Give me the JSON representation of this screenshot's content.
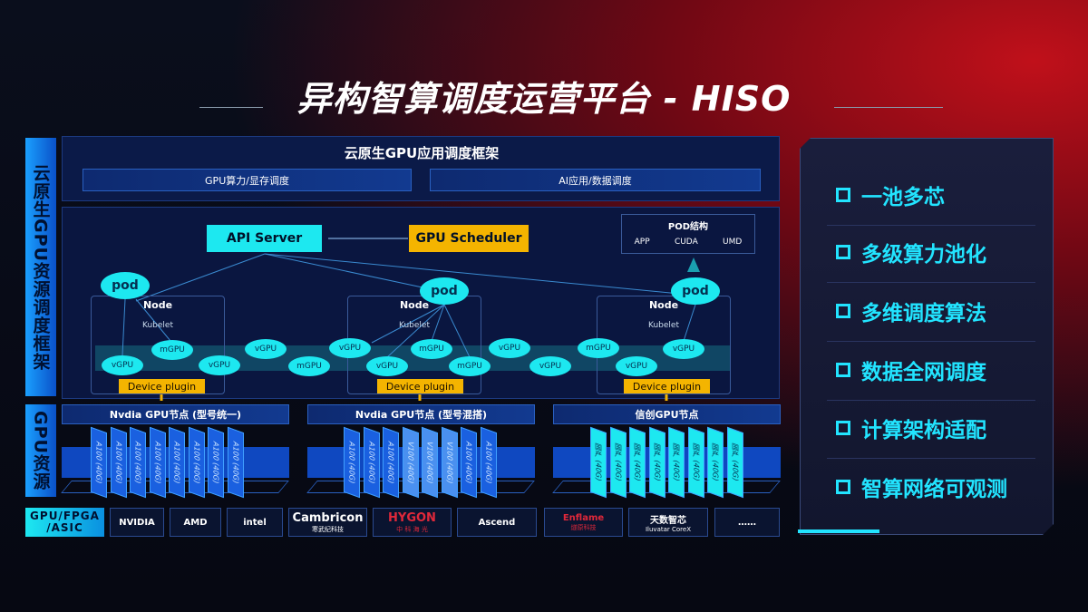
{
  "title": "异构智算调度运营平台 - HISO",
  "left_labels": {
    "framework": "云原生GPU资源调度框架",
    "resources": "GPU资源",
    "chip_types": "GPU/FPGA /ASIC"
  },
  "app_framework": {
    "title": "云原生GPU应用调度框架",
    "bars": [
      "GPU算力/显存调度",
      "AI应用/数据调度"
    ]
  },
  "scheduler": {
    "api_server": "API Server",
    "gpu_scheduler": "GPU Scheduler",
    "pod_structure": {
      "title": "POD结构",
      "items": [
        "APP",
        "CUDA",
        "UMD"
      ]
    }
  },
  "nodes": [
    {
      "node": "Node",
      "kubelet": "Kubelet",
      "pod": "pod",
      "device_plugin": "Device plugin"
    },
    {
      "node": "Node",
      "kubelet": "Kubelet",
      "pod": "pod",
      "device_plugin": "Device plugin"
    },
    {
      "node": "Node",
      "kubelet": "Kubelet",
      "pod": "pod",
      "device_plugin": "Device plugin"
    }
  ],
  "virtual_gpus": [
    "vGPU",
    "mGPU",
    "vGPU",
    "vGPU",
    "mGPU",
    "vGPU",
    "vGPU",
    "mGPU",
    "mGPU",
    "vGPU",
    "vGPU",
    "mGPU",
    "vGPU",
    "vGPU"
  ],
  "gpu_nodes": [
    {
      "title": "Nvdia GPU节点 (型号统一)",
      "cards": [
        "A100 (40G)",
        "A100 (40G)",
        "A100 (40G)",
        "A100 (40G)",
        "A100 (40G)",
        "A100 (40G)",
        "A100 (40G)",
        "A100 (40G)"
      ]
    },
    {
      "title": "Nvdia GPU节点 (型号混搭)",
      "cards": [
        "A100 (40G)",
        "A100 (40G)",
        "A100 (40G)",
        "V100 (40G)",
        "V100 (40G)",
        "V100 (40G)",
        "A100 (40G)",
        "A100 (40G)"
      ]
    },
    {
      "title": "信创GPU节点",
      "cards": [
        "国产 (40G)",
        "国产 (40G)",
        "国产 (40G)",
        "国产 (40G)",
        "国产 (40G)",
        "国产 (40G)",
        "国产 (40G)",
        "国产 (40G)"
      ]
    }
  ],
  "vendors": [
    {
      "name": "NVIDIA",
      "sub": ""
    },
    {
      "name": "AMD",
      "sub": ""
    },
    {
      "name": "intel",
      "sub": ""
    },
    {
      "name": "Cambricon",
      "sub": "寒武纪科技"
    },
    {
      "name": "HYGON",
      "sub": "中 科 海 光"
    },
    {
      "name": "Ascend",
      "sub": ""
    },
    {
      "name": "Enflame",
      "sub": "燧原科技"
    },
    {
      "name": "天数智芯",
      "sub": "Iluvatar CoreX"
    },
    {
      "name": "……",
      "sub": ""
    }
  ],
  "features": [
    "一池多芯",
    "多级算力池化",
    "多维调度算法",
    "数据全网调度",
    "计算架构适配",
    "智算网络可观测"
  ],
  "colors": {
    "cyan": "#1de8f0",
    "gold": "#f4b400",
    "blue": "#0a50c8",
    "accent_red": "#c0101a"
  }
}
